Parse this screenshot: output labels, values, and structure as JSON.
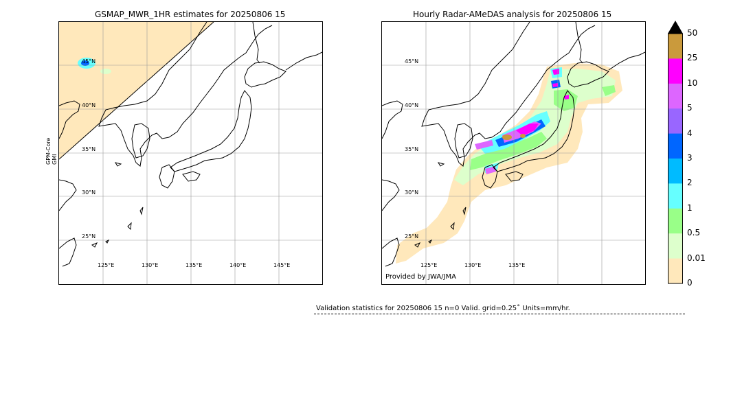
{
  "left_map": {
    "title": "GSMAP_MWR_1HR estimates for 20250806 15",
    "side_label_line1": "GPM-Core",
    "side_label_line2": "GMI",
    "lat_labels": [
      "45°N",
      "40°N",
      "35°N",
      "30°N",
      "25°N"
    ],
    "lon_labels": [
      "125°E",
      "130°E",
      "135°E",
      "140°E",
      "145°E"
    ]
  },
  "right_map": {
    "title": "Hourly Radar-AMeDAS analysis for 20250806 15",
    "lat_labels": [
      "45°N",
      "40°N",
      "35°N",
      "30°N",
      "25°N"
    ],
    "lon_labels": [
      "125°E",
      "130°E",
      "135°E"
    ],
    "provided_by": "Provided by JWA/JMA"
  },
  "colorbar": {
    "ticks": [
      "50",
      "25",
      "10",
      "5",
      "4",
      "3",
      "2",
      "1",
      "0.5",
      "0.01",
      "0"
    ],
    "colors": [
      "#ca9a3c",
      "#ff00ff",
      "#dd66ff",
      "#9966ff",
      "#0066ff",
      "#00bbff",
      "#66ffff",
      "#99ff88",
      "#ddffcc",
      "#ffe8bb"
    ],
    "extend_color": "#000000"
  },
  "validation": {
    "text": "Validation statistics for 20250806 15  n=0 Valid. grid=0.25˚ Units=mm/hr."
  }
}
